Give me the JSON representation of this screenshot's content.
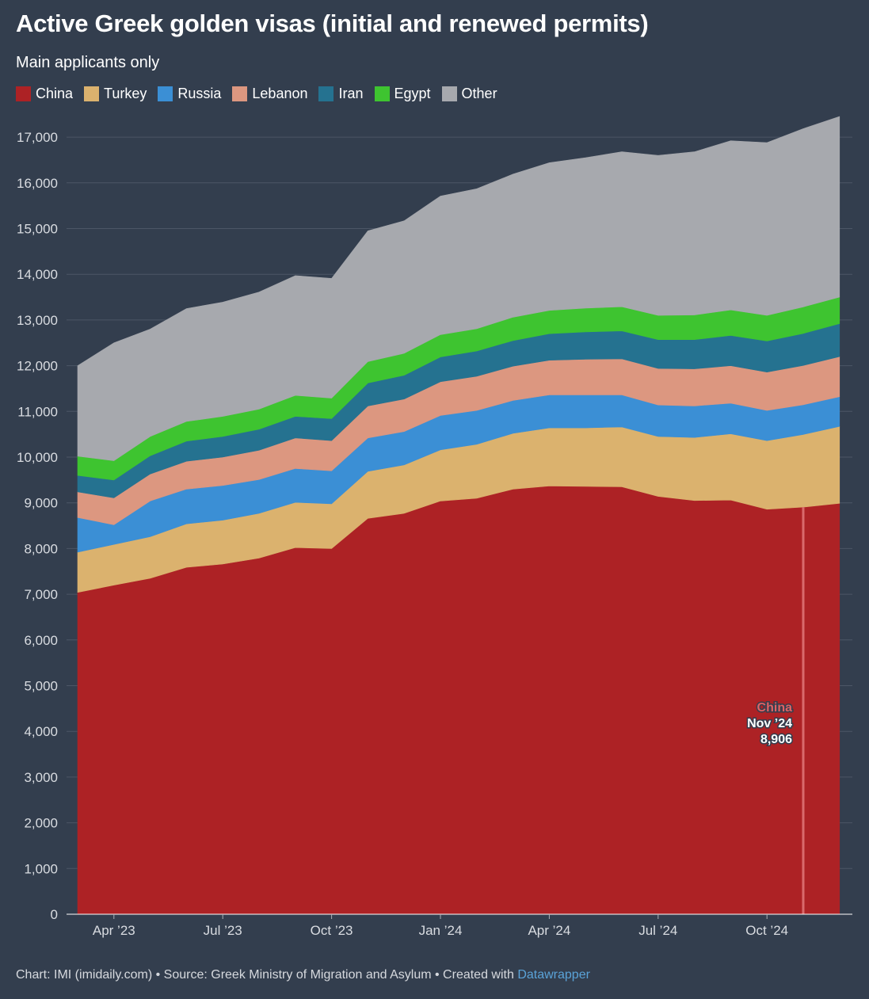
{
  "chart_data": {
    "type": "area",
    "stacked": true,
    "title": "Active Greek golden visas (initial and renewed permits)",
    "subtitle": "Main applicants only",
    "xlabel": "",
    "ylabel": "",
    "ylim": [
      0,
      17500
    ],
    "y_ticks": [
      0,
      1000,
      2000,
      3000,
      4000,
      5000,
      6000,
      7000,
      8000,
      9000,
      10000,
      11000,
      12000,
      13000,
      14000,
      15000,
      16000,
      17000
    ],
    "y_tick_labels": [
      "0",
      "1,000",
      "2,000",
      "3,000",
      "4,000",
      "5,000",
      "6,000",
      "7,000",
      "8,000",
      "9,000",
      "10,000",
      "11,000",
      "12,000",
      "13,000",
      "14,000",
      "15,000",
      "16,000",
      "17,000"
    ],
    "x": [
      "Mar '23",
      "Apr '23",
      "May '23",
      "Jun '23",
      "Jul '23",
      "Aug '23",
      "Sep '23",
      "Oct '23",
      "Nov '23",
      "Dec '23",
      "Jan '24",
      "Feb '24",
      "Mar '24",
      "Apr '24",
      "May '24",
      "Jun '24",
      "Jul '24",
      "Aug '24",
      "Sep '24",
      "Oct '24",
      "Nov '24",
      "Dec '24"
    ],
    "x_ticks": [
      {
        "index": 1,
        "label": "Apr ’23"
      },
      {
        "index": 4,
        "label": "Jul ’23"
      },
      {
        "index": 7,
        "label": "Oct ’23"
      },
      {
        "index": 10,
        "label": "Jan ’24"
      },
      {
        "index": 13,
        "label": "Apr ’24"
      },
      {
        "index": 16,
        "label": "Jul ’24"
      },
      {
        "index": 19,
        "label": "Oct ’24"
      }
    ],
    "grid": true,
    "series": [
      {
        "name": "China",
        "color": "#ad2225",
        "values": [
          7040,
          7200,
          7350,
          7590,
          7660,
          7790,
          8020,
          8000,
          8660,
          8770,
          9040,
          9100,
          9300,
          9370,
          9360,
          9350,
          9140,
          9050,
          9060,
          8860,
          8906,
          8990
        ]
      },
      {
        "name": "Turkey",
        "color": "#dbb26e",
        "values": [
          880,
          890,
          910,
          950,
          960,
          980,
          990,
          980,
          1030,
          1060,
          1120,
          1180,
          1220,
          1270,
          1280,
          1310,
          1310,
          1380,
          1450,
          1500,
          1590,
          1680
        ]
      },
      {
        "name": "Russia",
        "color": "#3b8fd5",
        "values": [
          760,
          430,
          780,
          760,
          760,
          740,
          740,
          720,
          730,
          730,
          750,
          740,
          720,
          720,
          720,
          700,
          690,
          690,
          670,
          660,
          650,
          650
        ]
      },
      {
        "name": "Lebanon",
        "color": "#dc9780",
        "values": [
          560,
          590,
          590,
          610,
          620,
          640,
          670,
          660,
          700,
          710,
          740,
          750,
          750,
          760,
          780,
          790,
          800,
          810,
          820,
          840,
          860,
          880
        ]
      },
      {
        "name": "Iran",
        "color": "#257290",
        "values": [
          360,
          390,
          400,
          440,
          450,
          460,
          470,
          480,
          500,
          520,
          540,
          550,
          560,
          580,
          600,
          610,
          630,
          640,
          660,
          680,
          700,
          720
        ]
      },
      {
        "name": "Egypt",
        "color": "#3ec430",
        "values": [
          420,
          420,
          420,
          430,
          440,
          440,
          460,
          450,
          470,
          480,
          490,
          490,
          510,
          510,
          520,
          530,
          530,
          540,
          560,
          560,
          580,
          580
        ]
      },
      {
        "name": "Other",
        "color": "#a7a9ae",
        "values": [
          1980,
          2580,
          2350,
          2470,
          2500,
          2560,
          2620,
          2620,
          2860,
          2900,
          3030,
          3060,
          3130,
          3230,
          3290,
          3390,
          3500,
          3570,
          3700,
          3780,
          3900,
          3950
        ]
      }
    ],
    "annotation": {
      "series": "China",
      "label": "China",
      "date": "Nov ’24",
      "value_label": "8,906",
      "index": 20
    }
  },
  "footer": {
    "text": "Chart: IMI (imidaily.com) • Source: Greek Ministry of Migration and Asylum • Created with ",
    "brand": "Datawrapper"
  }
}
